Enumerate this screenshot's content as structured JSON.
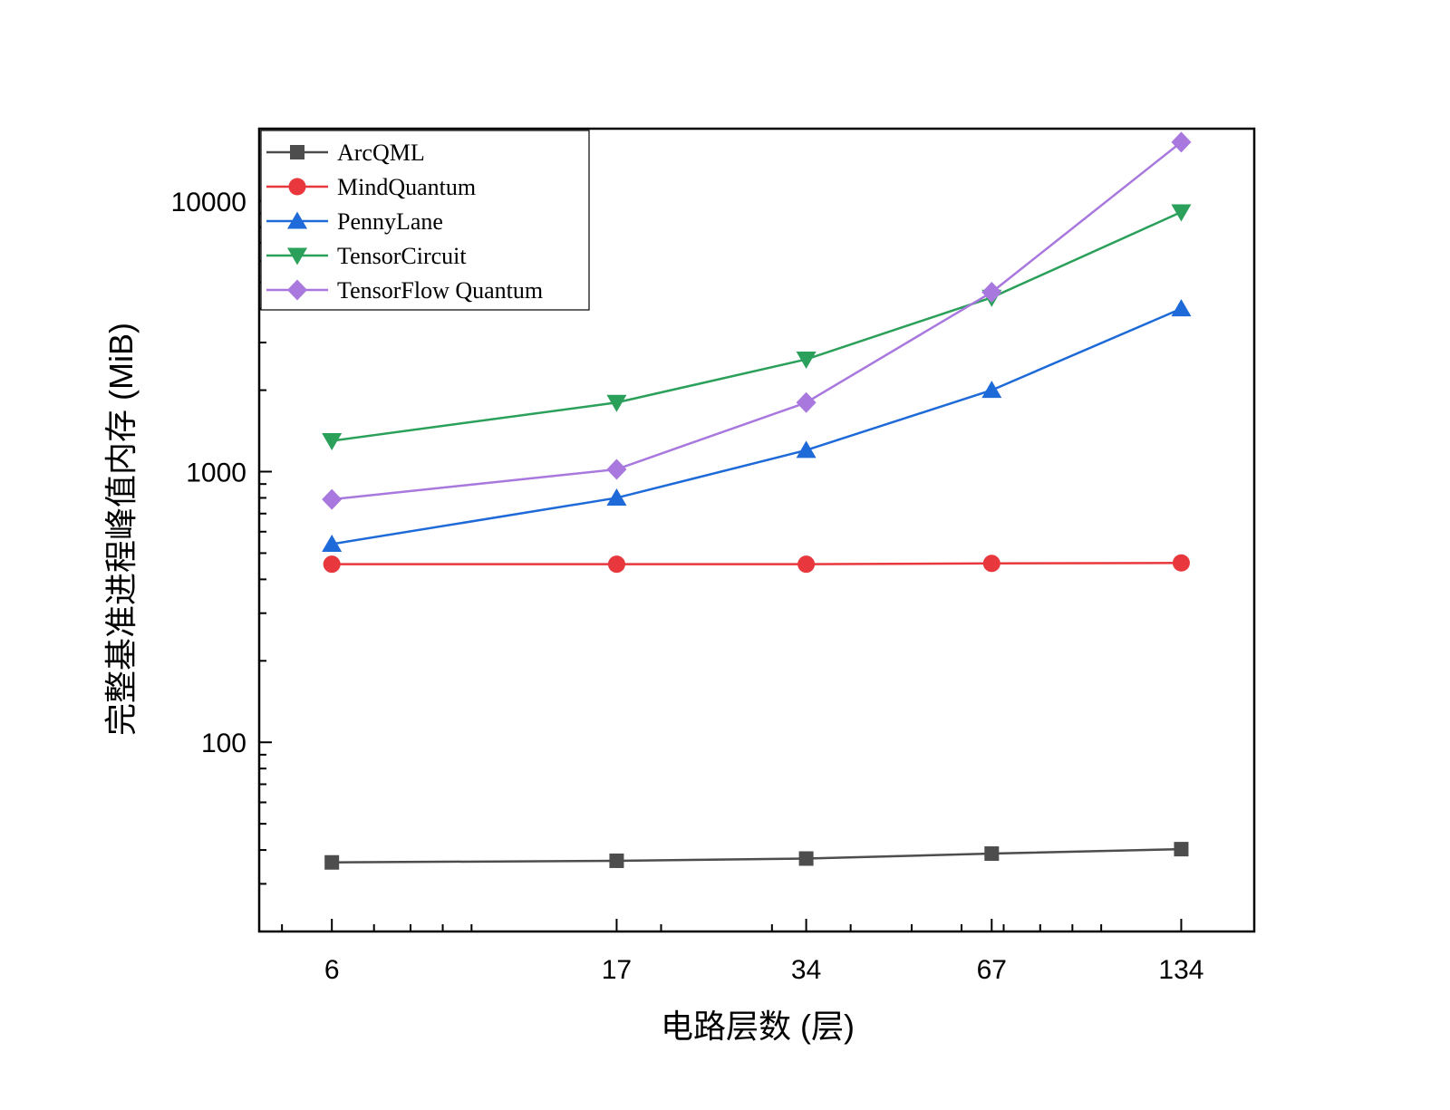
{
  "chart_data": {
    "type": "line",
    "x_scale": "log",
    "y_scale": "log",
    "xlabel": "电路层数 (层)",
    "ylabel": "完整基准进程峰值内存 (MiB)",
    "x": [
      6,
      17,
      34,
      67,
      134
    ],
    "xticks": [
      "6",
      "17",
      "34",
      "67",
      "134"
    ],
    "yticks": [
      "100",
      "1000",
      "10000"
    ],
    "xlim": [
      4.6,
      175
    ],
    "ylim": [
      20,
      18500
    ],
    "legend_position": "top-left",
    "series": [
      {
        "name": "ArcQML",
        "marker": "square",
        "color": "#4d4d4d",
        "values": [
          36,
          36.5,
          37.2,
          38.8,
          40.3
        ]
      },
      {
        "name": "MindQuantum",
        "marker": "circle",
        "color": "#e8383d",
        "values": [
          455,
          455,
          455,
          458,
          460
        ]
      },
      {
        "name": "PennyLane",
        "marker": "triangle-up",
        "color": "#1e6ad8",
        "values": [
          540,
          800,
          1200,
          2000,
          4000
        ]
      },
      {
        "name": "TensorCircuit",
        "marker": "triangle-down",
        "color": "#2aa05a",
        "values": [
          1300,
          1800,
          2600,
          4400,
          9100
        ]
      },
      {
        "name": "TensorFlow Quantum",
        "marker": "diamond",
        "color": "#a878de",
        "values": [
          790,
          1020,
          1800,
          4600,
          16500
        ]
      }
    ]
  }
}
